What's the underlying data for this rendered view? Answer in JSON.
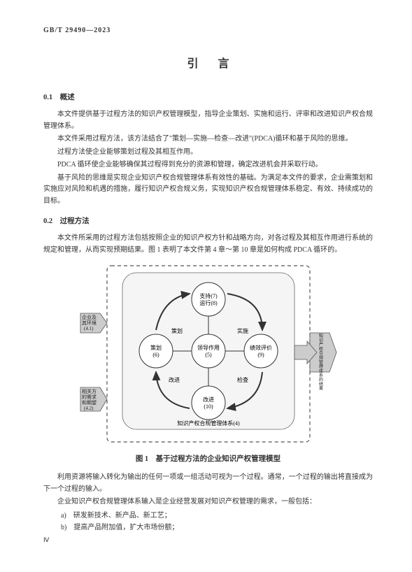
{
  "standard_id": "GB/T 29490—2023",
  "title": "引言",
  "section1": {
    "num": "0.1",
    "name": "概述",
    "p1": "本文件提供基于过程方法的知识产权管理模型，指导企业策划、实施和运行、评审和改进知识产权合规管理体系。",
    "p2": "本文件采用过程方法，该方法结合了\"策划—实施—检查—改进\"(PDCA)循环和基于风险的思维。",
    "p3": "过程方法使企业能够策划过程及其相互作用。",
    "p4": "PDCA 循环使企业能够确保其过程得到充分的资源和管理，确定改进机会并采取行动。",
    "p5": "基于风险的思维是实现企业知识产权合规管理体系有效性的基础。为满足本文件的要求，企业需策划和实施应对风险和机遇的措施，履行知识产权合规义务，实现知识产权合规管理体系稳定、有效、持续成功的目标。"
  },
  "section2": {
    "num": "0.2",
    "name": "过程方法",
    "p1": "本文件所采用的过程方法包括按照企业的知识产权方针和战略方向，对各过程及其相互作用进行系统的规定和管理，从而实现预期结果。图 1 表明了本文件第 4 章～第 10 章是如何构成 PDCA 循环的。"
  },
  "diagram": {
    "bg": "#ffffff",
    "dash_border": "#555555",
    "inner_bg": "#f5f5f5",
    "arrow_box_bg": "#cccccc",
    "circle_stroke": "#333333",
    "circle_fill": "#ffffff",
    "label_left1_l1": "企业及",
    "label_left1_l2": "其环境",
    "label_left1_l3": "(4.1)",
    "label_left2_l1": "相关方",
    "label_left2_l2": "的需求",
    "label_left2_l3": "和期望",
    "label_left2_l4": "(4.2)",
    "label_right_vert": "知识产权合规管理体系的结果",
    "node_top_l1": "支持(7)",
    "node_top_l2": "运行(8)",
    "node_left_l1": "策划",
    "node_left_l2": "(6)",
    "node_center_l1": "领导作用",
    "node_center_l2": "(5)",
    "node_right_l1": "绩效评价",
    "node_right_l2": "(9)",
    "node_bottom_l1": "改进",
    "node_bottom_l2": "(10)",
    "arc_plan": "策划",
    "arc_do": "实施",
    "arc_check": "检查",
    "arc_act": "改进",
    "footer_text": "知识产权合规管理体系(4)"
  },
  "figure_caption": "图 1　基于过程方法的企业知识产权管理模型",
  "after_fig": {
    "p1": "利用资源将输入转化为输出的任何一项或一组活动可视为一个过程。通常，一个过程的输出将直接成为下一个过程的输入。",
    "p2": "企业知识产权合规管理体系输入是企业经营发展对知识产权管理的需求，一般包括：",
    "li_a": "a)　研发新技术、新产品、新工艺；",
    "li_b": "b)　提高产品附加值，扩大市场份额；"
  },
  "page_num": "Ⅳ"
}
